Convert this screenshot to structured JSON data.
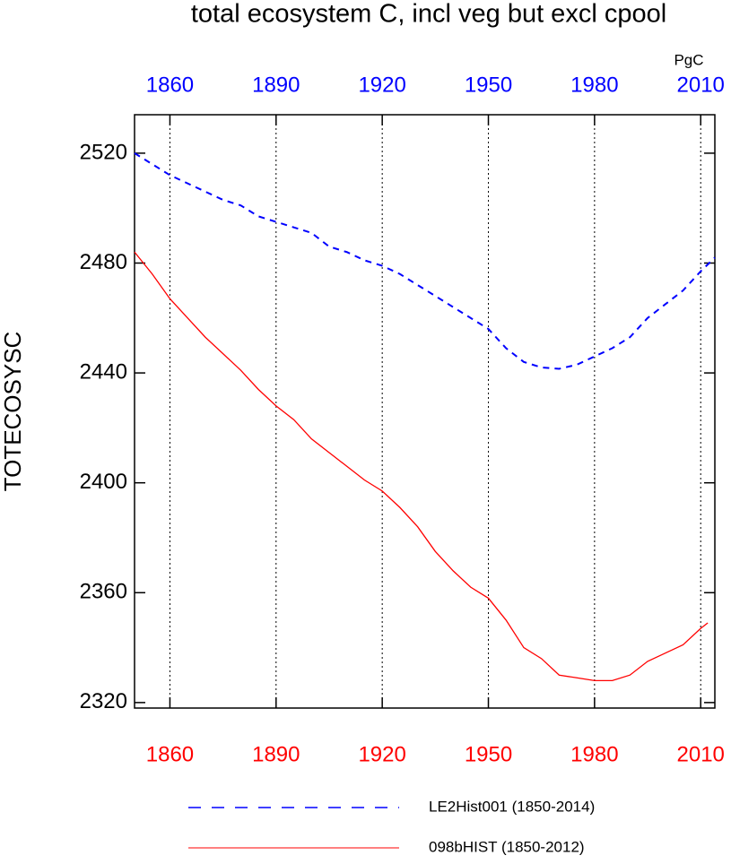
{
  "chart_data": {
    "type": "line",
    "title": "total ecosystem C, incl veg but excl cpool",
    "ylabel": "TOTECOSYSC",
    "units": "PgC",
    "xlim": [
      1850,
      2014
    ],
    "ylim": [
      2318,
      2534
    ],
    "xticks": [
      1860,
      1890,
      1920,
      1950,
      1980,
      2010
    ],
    "yticks": [
      2320,
      2360,
      2400,
      2440,
      2480,
      2520
    ],
    "grid": true,
    "top_axis_color": "#0000ff",
    "bottom_axis_color": "#ff0000",
    "legend": "bottom",
    "series": [
      {
        "name": "LE2Hist001 (1850-2014)",
        "color": "#0000ff",
        "dashed": true,
        "x": [
          1850,
          1855,
          1860,
          1865,
          1870,
          1875,
          1880,
          1885,
          1890,
          1895,
          1900,
          1905,
          1910,
          1915,
          1920,
          1925,
          1930,
          1935,
          1940,
          1945,
          1950,
          1955,
          1960,
          1965,
          1970,
          1975,
          1980,
          1985,
          1990,
          1995,
          2000,
          2005,
          2010,
          2014
        ],
        "values": [
          2520,
          2516,
          2512,
          2509,
          2506,
          2503,
          2501,
          2497,
          2495,
          2493,
          2491,
          2486,
          2484,
          2481,
          2479,
          2476,
          2472,
          2468,
          2464,
          2460,
          2456,
          2449,
          2444,
          2442,
          2441.5,
          2443,
          2446,
          2449,
          2453,
          2460,
          2465,
          2470,
          2477,
          2482
        ]
      },
      {
        "name": "098bHIST (1850-2012)",
        "color": "#ff0000",
        "dashed": false,
        "x": [
          1850,
          1855,
          1860,
          1865,
          1870,
          1875,
          1880,
          1885,
          1890,
          1895,
          1900,
          1905,
          1910,
          1915,
          1920,
          1925,
          1930,
          1935,
          1940,
          1945,
          1950,
          1955,
          1960,
          1965,
          1970,
          1975,
          1980,
          1985,
          1990,
          1995,
          2000,
          2005,
          2010,
          2012
        ],
        "values": [
          2484,
          2476,
          2467,
          2460,
          2453,
          2447,
          2441,
          2434,
          2428,
          2423,
          2416,
          2411,
          2406,
          2401,
          2397,
          2391,
          2384,
          2375,
          2368,
          2362,
          2358,
          2350,
          2340,
          2336,
          2330,
          2329,
          2328,
          2328,
          2330,
          2335,
          2338,
          2341,
          2347,
          2349
        ]
      }
    ]
  }
}
